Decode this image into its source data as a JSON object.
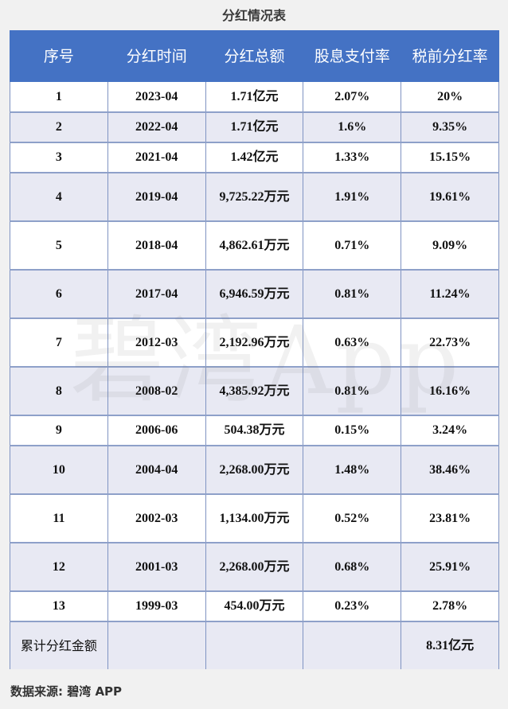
{
  "title": "分红情况表",
  "table": {
    "headers": [
      "序号",
      "分红时间",
      "分红总额",
      "股息支付率",
      "税前分红率"
    ],
    "rows": [
      {
        "no": "1",
        "date": "2023-04",
        "amount": "1.71亿元",
        "payout": "2.07%",
        "yield": "20%",
        "tall": false
      },
      {
        "no": "2",
        "date": "2022-04",
        "amount": "1.71亿元",
        "payout": "1.6%",
        "yield": "9.35%",
        "tall": false
      },
      {
        "no": "3",
        "date": "2021-04",
        "amount": "1.42亿元",
        "payout": "1.33%",
        "yield": "15.15%",
        "tall": false
      },
      {
        "no": "4",
        "date": "2019-04",
        "amount": "9,725.22万元",
        "payout": "1.91%",
        "yield": "19.61%",
        "tall": true
      },
      {
        "no": "5",
        "date": "2018-04",
        "amount": "4,862.61万元",
        "payout": "0.71%",
        "yield": "9.09%",
        "tall": true
      },
      {
        "no": "6",
        "date": "2017-04",
        "amount": "6,946.59万元",
        "payout": "0.81%",
        "yield": "11.24%",
        "tall": true
      },
      {
        "no": "7",
        "date": "2012-03",
        "amount": "2,192.96万元",
        "payout": "0.63%",
        "yield": "22.73%",
        "tall": true
      },
      {
        "no": "8",
        "date": "2008-02",
        "amount": "4,385.92万元",
        "payout": "0.81%",
        "yield": "16.16%",
        "tall": true
      },
      {
        "no": "9",
        "date": "2006-06",
        "amount": "504.38万元",
        "payout": "0.15%",
        "yield": "3.24%",
        "tall": false
      },
      {
        "no": "10",
        "date": "2004-04",
        "amount": "2,268.00万元",
        "payout": "1.48%",
        "yield": "38.46%",
        "tall": true
      },
      {
        "no": "11",
        "date": "2002-03",
        "amount": "1,134.00万元",
        "payout": "0.52%",
        "yield": "23.81%",
        "tall": true
      },
      {
        "no": "12",
        "date": "2001-03",
        "amount": "2,268.00万元",
        "payout": "0.68%",
        "yield": "25.91%",
        "tall": true
      },
      {
        "no": "13",
        "date": "1999-03",
        "amount": "454.00万元",
        "payout": "0.23%",
        "yield": "2.78%",
        "tall": false
      }
    ],
    "total": {
      "label": "累计分红金额",
      "date": "",
      "amount": "",
      "payout": "",
      "yield": "8.31亿元"
    }
  },
  "watermark": "碧湾App",
  "source": "数据来源: 碧湾 APP",
  "colors": {
    "header_bg": "#4472c4",
    "header_text": "#ffffff",
    "row_alt_bg": "#e8e9f3",
    "border": "#8ea0c9",
    "page_bg": "#f1f1f1"
  }
}
